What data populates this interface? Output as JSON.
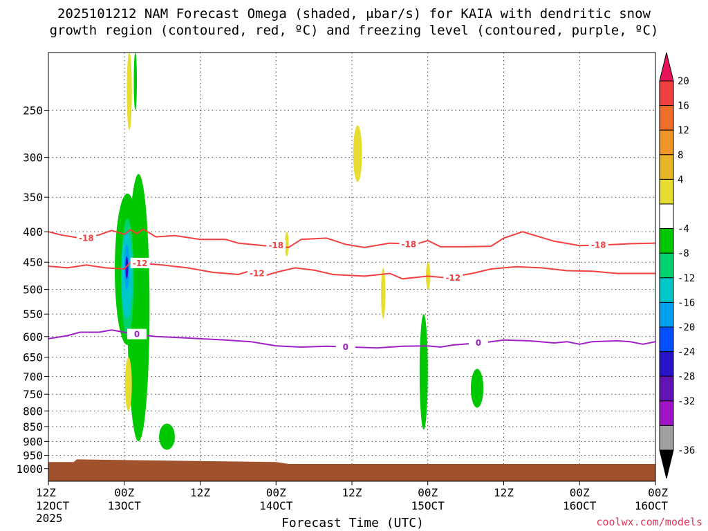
{
  "chart_data": {
    "type": "contour",
    "title_line1": "2025101212 NAM Forecast Omega (shaded, μbar/s) for KAIA with dendritic snow",
    "title_line2": "growth region (contoured, red, ºC) and freezing level (contoured, purple, ºC)",
    "xlabel": "Forecast Time (UTC)",
    "credit": "coolwx.com/models",
    "xlim_hours": [
      0,
      96
    ],
    "x_ticks": [
      {
        "h": 0,
        "l1": "12Z",
        "l2": "12OCT",
        "l3": "2025"
      },
      {
        "h": 12,
        "l1": "00Z",
        "l2": "13OCT",
        "l3": ""
      },
      {
        "h": 24,
        "l1": "12Z",
        "l2": "",
        "l3": ""
      },
      {
        "h": 36,
        "l1": "00Z",
        "l2": "14OCT",
        "l3": ""
      },
      {
        "h": 48,
        "l1": "12Z",
        "l2": "",
        "l3": ""
      },
      {
        "h": 60,
        "l1": "00Z",
        "l2": "15OCT",
        "l3": ""
      },
      {
        "h": 72,
        "l1": "12Z",
        "l2": "",
        "l3": ""
      },
      {
        "h": 84,
        "l1": "00Z",
        "l2": "16OCT",
        "l3": ""
      }
    ],
    "y_scale": "log-pressure (hPa)",
    "ylim_hpa": [
      200,
      1050
    ],
    "y_ticks": [
      "250",
      "300",
      "350",
      "400",
      "450",
      "500",
      "550",
      "600",
      "650",
      "700",
      "750",
      "800",
      "850",
      "900",
      "950",
      "1000"
    ],
    "grid": "dotted",
    "colorbar": {
      "labels": [
        "20",
        "16",
        "12",
        "8",
        "4",
        "-4",
        "-8",
        "-12",
        "-16",
        "-20",
        "-24",
        "-28",
        "-32",
        "-36"
      ],
      "colors": [
        "#e8145a",
        "#f04040",
        "#f06e28",
        "#f09628",
        "#e8b428",
        "#e6dc32",
        "#ffffff",
        "#00c800",
        "#00d26e",
        "#00c8c8",
        "#00a0f0",
        "#0050ff",
        "#2814c8",
        "#6414b4",
        "#a014c8",
        "#a0a0a0",
        "#000000"
      ]
    },
    "contours": [
      {
        "name": "-18",
        "color": "#f04040",
        "label": "-18",
        "points": [
          [
            0,
            400
          ],
          [
            2,
            405
          ],
          [
            5,
            410
          ],
          [
            8,
            405
          ],
          [
            10,
            398
          ],
          [
            12,
            404
          ],
          [
            13,
            397
          ],
          [
            14,
            403
          ],
          [
            15,
            396
          ],
          [
            17,
            408
          ],
          [
            20,
            406
          ],
          [
            24,
            412
          ],
          [
            28,
            412
          ],
          [
            30,
            418
          ],
          [
            34,
            422
          ],
          [
            38,
            425
          ],
          [
            40,
            412
          ],
          [
            44,
            410
          ],
          [
            47,
            420
          ],
          [
            50,
            425
          ],
          [
            54,
            418
          ],
          [
            58,
            420
          ],
          [
            60,
            414
          ],
          [
            62,
            424
          ],
          [
            66,
            424
          ],
          [
            70,
            423
          ],
          [
            72,
            410
          ],
          [
            75,
            400
          ],
          [
            80,
            415
          ],
          [
            84,
            422
          ],
          [
            88,
            421
          ],
          [
            92,
            419
          ],
          [
            96,
            418
          ]
        ]
      },
      {
        "name": "-12",
        "color": "#f04040",
        "label": "-12",
        "points": [
          [
            0,
            457
          ],
          [
            3,
            460
          ],
          [
            6,
            455
          ],
          [
            9,
            460
          ],
          [
            12,
            462
          ],
          [
            13,
            450
          ],
          [
            15,
            452
          ],
          [
            18,
            455
          ],
          [
            22,
            460
          ],
          [
            26,
            468
          ],
          [
            30,
            472
          ],
          [
            32,
            465
          ],
          [
            34,
            475
          ],
          [
            36,
            468
          ],
          [
            39,
            460
          ],
          [
            42,
            464
          ],
          [
            45,
            472
          ],
          [
            50,
            475
          ],
          [
            54,
            470
          ],
          [
            56,
            480
          ],
          [
            60,
            475
          ],
          [
            63,
            478
          ],
          [
            65,
            474
          ],
          [
            67,
            470
          ],
          [
            70,
            462
          ],
          [
            74,
            458
          ],
          [
            78,
            460
          ],
          [
            82,
            465
          ],
          [
            86,
            466
          ],
          [
            90,
            470
          ],
          [
            96,
            470
          ]
        ]
      },
      {
        "name": "0",
        "color": "#a020c8",
        "label": "0",
        "points": [
          [
            0,
            605
          ],
          [
            3,
            598
          ],
          [
            5,
            590
          ],
          [
            8,
            590
          ],
          [
            10,
            585
          ],
          [
            12,
            590
          ],
          [
            14,
            595
          ],
          [
            17,
            600
          ],
          [
            20,
            602
          ],
          [
            24,
            605
          ],
          [
            28,
            608
          ],
          [
            32,
            612
          ],
          [
            36,
            622
          ],
          [
            40,
            625
          ],
          [
            44,
            623
          ],
          [
            48,
            625
          ],
          [
            52,
            627
          ],
          [
            56,
            623
          ],
          [
            60,
            622
          ],
          [
            62,
            625
          ],
          [
            64,
            620
          ],
          [
            68,
            615
          ],
          [
            70,
            612
          ],
          [
            72,
            608
          ],
          [
            76,
            610
          ],
          [
            80,
            615
          ],
          [
            82,
            612
          ],
          [
            84,
            618
          ],
          [
            86,
            612
          ],
          [
            90,
            610
          ],
          [
            92,
            612
          ],
          [
            94,
            618
          ],
          [
            96,
            612
          ]
        ]
      }
    ],
    "shaded_regions": [
      {
        "value_range": "4 to 8",
        "color": "#e6dc32",
        "h": [
          12.4,
          13.2
        ],
        "p": [
          200,
          270
        ]
      },
      {
        "value_range": "-4 to -8",
        "color": "#00c800",
        "h": [
          13.5,
          14.0
        ],
        "p": [
          200,
          250
        ]
      },
      {
        "value_range": "4 to 8",
        "color": "#e6dc32",
        "h": [
          48.2,
          49.6
        ],
        "p": [
          265,
          330
        ]
      },
      {
        "value_range": "-4 to -8",
        "color": "#00c800",
        "h": [
          10.5,
          14.5
        ],
        "p": [
          345,
          620
        ]
      },
      {
        "value_range": "-4 to -8",
        "color": "#00c800",
        "h": [
          12.5,
          16.0
        ],
        "p": [
          320,
          900
        ]
      },
      {
        "value_range": "-8 to -12",
        "color": "#00d26e",
        "h": [
          11.5,
          13.5
        ],
        "p": [
          380,
          600
        ]
      },
      {
        "value_range": "-12 to -16",
        "color": "#00c8c8",
        "h": [
          11.5,
          13.3
        ],
        "p": [
          400,
          560
        ]
      },
      {
        "value_range": "-16 to -20",
        "color": "#00a0f0",
        "h": [
          12.0,
          12.8
        ],
        "p": [
          420,
          500
        ]
      },
      {
        "value_range": "-24 to -28",
        "color": "#2814c8",
        "h": [
          12.2,
          12.6
        ],
        "p": [
          440,
          480
        ]
      },
      {
        "value_range": "4 to 8",
        "color": "#e6dc32",
        "h": [
          12.1,
          13.2
        ],
        "p": [
          650,
          800
        ]
      },
      {
        "value_range": "-4 to -8",
        "color": "#00c800",
        "h": [
          17.5,
          20.0
        ],
        "p": [
          840,
          930
        ]
      },
      {
        "value_range": "-4 to -8",
        "color": "#00c800",
        "h": [
          58.7,
          60.0
        ],
        "p": [
          550,
          860
        ]
      },
      {
        "value_range": "-4 to -8",
        "color": "#00c800",
        "h": [
          66.8,
          68.8
        ],
        "p": [
          680,
          790
        ]
      },
      {
        "value_range": "4 to 8",
        "color": "#e6dc32",
        "h": [
          37.4,
          38.0
        ],
        "p": [
          400,
          440
        ]
      },
      {
        "value_range": "4 to 8",
        "color": "#e6dc32",
        "h": [
          52.6,
          53.3
        ],
        "p": [
          460,
          560
        ]
      },
      {
        "value_range": "4 to 8",
        "color": "#e6dc32",
        "h": [
          59.7,
          60.4
        ],
        "p": [
          450,
          500
        ]
      }
    ],
    "terrain": {
      "color": "#a0522d",
      "label": "surface"
    }
  }
}
